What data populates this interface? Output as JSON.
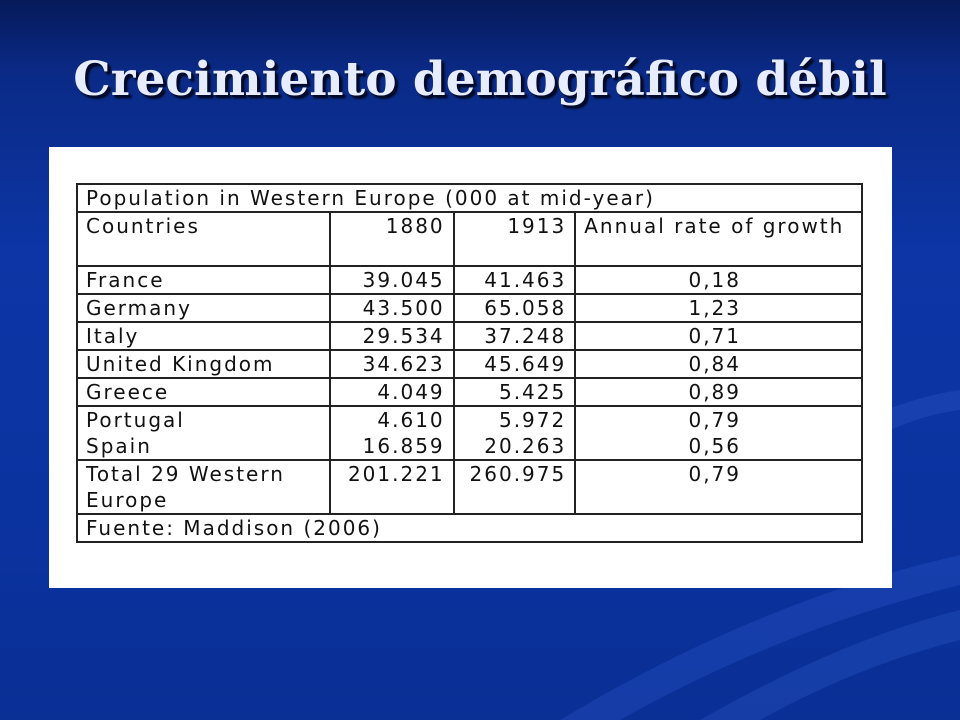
{
  "slide": {
    "title": "Crecimiento demográfico débil"
  },
  "table": {
    "caption": "Population in Western Europe (000 at mid-year)",
    "headers": {
      "country": "Countries",
      "y1880": "1880",
      "y1913": "1913",
      "rate": "Annual rate of growth"
    },
    "rows": [
      {
        "country": "France",
        "y1880": "39.045",
        "y1913": "41.463",
        "rate": "0,18"
      },
      {
        "country": "Germany",
        "y1880": "43.500",
        "y1913": "65.058",
        "rate": "1,23"
      },
      {
        "country": "Italy",
        "y1880": "29.534",
        "y1913": "37.248",
        "rate": "0,71"
      },
      {
        "country": "United Kingdom",
        "y1880": "34.623",
        "y1913": "45.649",
        "rate": "0,84"
      },
      {
        "country": "Greece",
        "y1880": "4.049",
        "y1913": "5.425",
        "rate": "0,89"
      }
    ],
    "merged_row": {
      "a": {
        "country": "Portugal",
        "y1880": "4.610",
        "y1913": "5.972",
        "rate": "0,79"
      },
      "b": {
        "country": "Spain",
        "y1880": "16.859",
        "y1913": "20.263",
        "rate": "0,56"
      }
    },
    "total": {
      "country": "Total 29 Western Europe",
      "y1880": "201.221",
      "y1913": "260.975",
      "rate": "0,79"
    },
    "source": "Fuente: Maddison (2006)"
  }
}
